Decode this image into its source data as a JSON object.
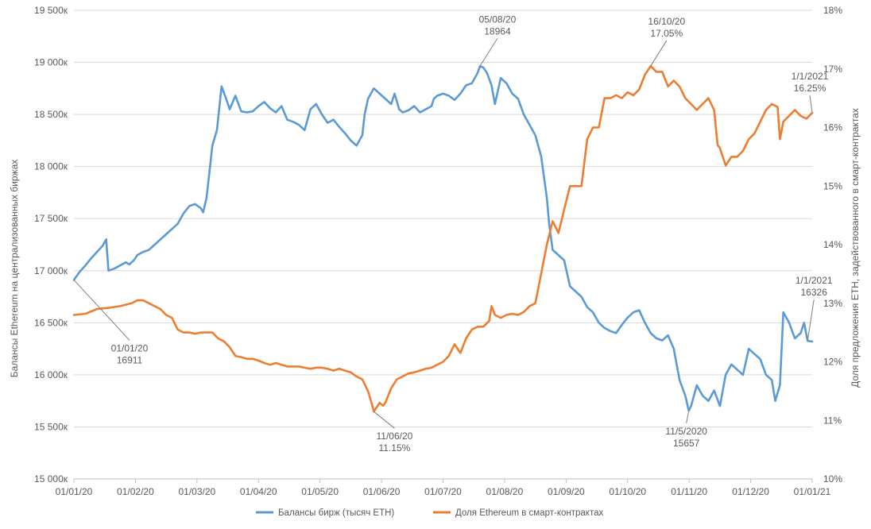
{
  "chart_data": {
    "type": "line",
    "title": "",
    "x_start": "2020-01-01",
    "x_end": "2021-01-01",
    "x_ticks": [
      "01/01/20",
      "01/02/20",
      "01/03/20",
      "01/04/20",
      "01/05/20",
      "01/06/20",
      "01/07/20",
      "01/08/20",
      "01/09/20",
      "01/10/20",
      "01/11/20",
      "01/12/20",
      "01/01/21"
    ],
    "y_left": {
      "label": "Балансы Ethereum на централизованных биржах",
      "range": [
        15000,
        19500
      ],
      "ticks": [
        "15 000к",
        "15 500к",
        "16 000к",
        "16 500к",
        "17 000к",
        "17 500к",
        "18 000к",
        "18 500к",
        "19 000к",
        "19 500к"
      ]
    },
    "y_right": {
      "label": "Доля предложения ETH, задействованного в смарт-контрактах",
      "range": [
        10,
        18
      ],
      "ticks": [
        "10%",
        "11%",
        "12%",
        "13%",
        "14%",
        "15%",
        "16%",
        "17%",
        "18%"
      ]
    },
    "colors": {
      "balances": "#5b9bd5",
      "share": "#ed7d31",
      "grid": "#d9d9d9",
      "text": "#595959"
    },
    "series": [
      {
        "name": "Балансы бирж (тысяч ETH)",
        "axis": "left",
        "color": "#5b9bd5",
        "points": [
          [
            0,
            16911
          ],
          [
            5,
            16990
          ],
          [
            10,
            17050
          ],
          [
            15,
            17120
          ],
          [
            20,
            17180
          ],
          [
            25,
            17240
          ],
          [
            28,
            17300
          ],
          [
            30,
            17000
          ],
          [
            35,
            17020
          ],
          [
            40,
            17050
          ],
          [
            45,
            17080
          ],
          [
            48,
            17060
          ],
          [
            52,
            17100
          ],
          [
            55,
            17150
          ],
          [
            60,
            17180
          ],
          [
            65,
            17200
          ],
          [
            70,
            17250
          ],
          [
            75,
            17300
          ],
          [
            80,
            17350
          ],
          [
            85,
            17400
          ],
          [
            90,
            17450
          ],
          [
            95,
            17550
          ],
          [
            100,
            17620
          ],
          [
            105,
            17640
          ],
          [
            110,
            17600
          ],
          [
            112,
            17560
          ],
          [
            115,
            17700
          ],
          [
            118,
            18000
          ],
          [
            120,
            18200
          ],
          [
            124,
            18350
          ],
          [
            128,
            18770
          ],
          [
            132,
            18650
          ],
          [
            135,
            18550
          ],
          [
            140,
            18680
          ],
          [
            145,
            18530
          ],
          [
            150,
            18520
          ],
          [
            155,
            18530
          ],
          [
            160,
            18580
          ],
          [
            165,
            18620
          ],
          [
            170,
            18560
          ],
          [
            175,
            18520
          ],
          [
            180,
            18580
          ],
          [
            185,
            18450
          ],
          [
            190,
            18430
          ],
          [
            195,
            18400
          ],
          [
            200,
            18350
          ],
          [
            205,
            18550
          ],
          [
            210,
            18600
          ],
          [
            215,
            18500
          ],
          [
            220,
            18420
          ],
          [
            225,
            18450
          ],
          [
            230,
            18380
          ],
          [
            235,
            18320
          ],
          [
            240,
            18250
          ],
          [
            245,
            18200
          ],
          [
            250,
            18300
          ],
          [
            252,
            18500
          ],
          [
            255,
            18650
          ],
          [
            260,
            18750
          ],
          [
            265,
            18700
          ],
          [
            270,
            18650
          ],
          [
            275,
            18600
          ],
          [
            278,
            18700
          ],
          [
            282,
            18550
          ],
          [
            285,
            18520
          ],
          [
            290,
            18540
          ],
          [
            295,
            18580
          ],
          [
            300,
            18520
          ],
          [
            305,
            18550
          ],
          [
            310,
            18580
          ],
          [
            312,
            18650
          ],
          [
            315,
            18680
          ],
          [
            320,
            18700
          ],
          [
            325,
            18680
          ],
          [
            330,
            18640
          ],
          [
            335,
            18700
          ],
          [
            340,
            18780
          ],
          [
            345,
            18800
          ],
          [
            350,
            18900
          ],
          [
            352,
            18964
          ],
          [
            355,
            18950
          ],
          [
            358,
            18900
          ],
          [
            362,
            18780
          ],
          [
            365,
            18600
          ],
          [
            370,
            18850
          ],
          [
            375,
            18800
          ],
          [
            380,
            18700
          ],
          [
            385,
            18650
          ],
          [
            390,
            18500
          ],
          [
            395,
            18400
          ],
          [
            400,
            18300
          ],
          [
            405,
            18100
          ],
          [
            410,
            17700
          ],
          [
            412,
            17450
          ],
          [
            415,
            17200
          ],
          [
            420,
            17150
          ],
          [
            425,
            17100
          ],
          [
            430,
            16850
          ],
          [
            435,
            16800
          ],
          [
            440,
            16750
          ],
          [
            445,
            16650
          ],
          [
            450,
            16600
          ],
          [
            455,
            16500
          ],
          [
            460,
            16450
          ],
          [
            465,
            16420
          ],
          [
            470,
            16400
          ],
          [
            475,
            16480
          ],
          [
            480,
            16550
          ],
          [
            485,
            16600
          ],
          [
            490,
            16620
          ],
          [
            495,
            16500
          ],
          [
            500,
            16400
          ],
          [
            505,
            16350
          ],
          [
            510,
            16330
          ],
          [
            515,
            16380
          ],
          [
            520,
            16250
          ],
          [
            525,
            15950
          ],
          [
            530,
            15800
          ],
          [
            533,
            15657
          ],
          [
            535,
            15700
          ],
          [
            540,
            15900
          ],
          [
            545,
            15800
          ],
          [
            550,
            15750
          ],
          [
            555,
            15850
          ],
          [
            560,
            15700
          ],
          [
            565,
            16000
          ],
          [
            570,
            16100
          ],
          [
            575,
            16050
          ],
          [
            580,
            16000
          ],
          [
            585,
            16250
          ],
          [
            590,
            16200
          ],
          [
            595,
            16150
          ],
          [
            600,
            16000
          ],
          [
            605,
            15950
          ],
          [
            608,
            15750
          ],
          [
            612,
            15900
          ],
          [
            615,
            16600
          ],
          [
            620,
            16500
          ],
          [
            625,
            16350
          ],
          [
            630,
            16400
          ],
          [
            633,
            16500
          ],
          [
            636,
            16326
          ],
          [
            640,
            16320
          ]
        ]
      },
      {
        "name": "Доля Ethereum в смарт-контрактах",
        "axis": "right",
        "color": "#ed7d31",
        "points": [
          [
            0,
            12.8
          ],
          [
            10,
            12.82
          ],
          [
            20,
            12.9
          ],
          [
            30,
            12.92
          ],
          [
            40,
            12.95
          ],
          [
            50,
            13
          ],
          [
            55,
            13.05
          ],
          [
            60,
            13.05
          ],
          [
            65,
            13
          ],
          [
            70,
            12.95
          ],
          [
            75,
            12.9
          ],
          [
            80,
            12.8
          ],
          [
            85,
            12.75
          ],
          [
            90,
            12.55
          ],
          [
            95,
            12.5
          ],
          [
            100,
            12.5
          ],
          [
            105,
            12.48
          ],
          [
            110,
            12.5
          ],
          [
            115,
            12.5
          ],
          [
            120,
            12.5
          ],
          [
            125,
            12.4
          ],
          [
            130,
            12.35
          ],
          [
            135,
            12.25
          ],
          [
            140,
            12.1
          ],
          [
            145,
            12.08
          ],
          [
            150,
            12.05
          ],
          [
            155,
            12.05
          ],
          [
            160,
            12.02
          ],
          [
            165,
            11.98
          ],
          [
            170,
            11.95
          ],
          [
            175,
            11.98
          ],
          [
            180,
            11.95
          ],
          [
            185,
            11.92
          ],
          [
            190,
            11.92
          ],
          [
            195,
            11.92
          ],
          [
            200,
            11.9
          ],
          [
            205,
            11.88
          ],
          [
            210,
            11.9
          ],
          [
            215,
            11.9
          ],
          [
            220,
            11.88
          ],
          [
            225,
            11.85
          ],
          [
            230,
            11.88
          ],
          [
            235,
            11.85
          ],
          [
            240,
            11.82
          ],
          [
            245,
            11.75
          ],
          [
            250,
            11.7
          ],
          [
            255,
            11.5
          ],
          [
            258,
            11.3
          ],
          [
            260,
            11.15
          ],
          [
            265,
            11.3
          ],
          [
            268,
            11.25
          ],
          [
            270,
            11.3
          ],
          [
            275,
            11.55
          ],
          [
            280,
            11.7
          ],
          [
            285,
            11.75
          ],
          [
            290,
            11.8
          ],
          [
            295,
            11.82
          ],
          [
            300,
            11.85
          ],
          [
            305,
            11.88
          ],
          [
            310,
            11.9
          ],
          [
            315,
            11.95
          ],
          [
            320,
            12
          ],
          [
            325,
            12.1
          ],
          [
            330,
            12.3
          ],
          [
            335,
            12.15
          ],
          [
            340,
            12.4
          ],
          [
            345,
            12.55
          ],
          [
            350,
            12.6
          ],
          [
            355,
            12.6
          ],
          [
            360,
            12.7
          ],
          [
            362,
            12.95
          ],
          [
            365,
            12.8
          ],
          [
            370,
            12.75
          ],
          [
            375,
            12.8
          ],
          [
            380,
            12.82
          ],
          [
            385,
            12.8
          ],
          [
            390,
            12.85
          ],
          [
            395,
            12.95
          ],
          [
            400,
            13
          ],
          [
            405,
            13.5
          ],
          [
            410,
            14
          ],
          [
            415,
            14.4
          ],
          [
            420,
            14.2
          ],
          [
            425,
            14.6
          ],
          [
            430,
            15
          ],
          [
            435,
            15
          ],
          [
            440,
            15
          ],
          [
            445,
            15.8
          ],
          [
            450,
            16
          ],
          [
            455,
            16
          ],
          [
            460,
            16.5
          ],
          [
            465,
            16.5
          ],
          [
            470,
            16.55
          ],
          [
            475,
            16.5
          ],
          [
            480,
            16.6
          ],
          [
            485,
            16.55
          ],
          [
            490,
            16.65
          ],
          [
            495,
            16.9
          ],
          [
            500,
            17.05
          ],
          [
            505,
            16.95
          ],
          [
            510,
            16.95
          ],
          [
            515,
            16.7
          ],
          [
            520,
            16.8
          ],
          [
            525,
            16.7
          ],
          [
            530,
            16.5
          ],
          [
            535,
            16.4
          ],
          [
            540,
            16.3
          ],
          [
            545,
            16.4
          ],
          [
            550,
            16.5
          ],
          [
            555,
            16.3
          ],
          [
            558,
            15.7
          ],
          [
            560,
            15.65
          ],
          [
            565,
            15.35
          ],
          [
            570,
            15.5
          ],
          [
            575,
            15.5
          ],
          [
            580,
            15.6
          ],
          [
            585,
            15.8
          ],
          [
            590,
            15.9
          ],
          [
            595,
            16.1
          ],
          [
            600,
            16.3
          ],
          [
            605,
            16.4
          ],
          [
            610,
            16.35
          ],
          [
            612,
            15.8
          ],
          [
            615,
            16.1
          ],
          [
            620,
            16.2
          ],
          [
            625,
            16.3
          ],
          [
            630,
            16.2
          ],
          [
            635,
            16.15
          ],
          [
            640,
            16.25
          ]
        ]
      }
    ],
    "annotations": [
      {
        "series": 0,
        "at": 0,
        "date": "01/01/20",
        "value": "16911"
      },
      {
        "series": 0,
        "at": 352,
        "date": "05/08/20",
        "value": "18964"
      },
      {
        "series": 0,
        "at": 533,
        "date": "11/5/2020",
        "value": "15657"
      },
      {
        "series": 0,
        "at": 636,
        "date": "1/1/2021",
        "value": "16326"
      },
      {
        "series": 1,
        "at": 260,
        "date": "11/06/20",
        "value": "11.15%"
      },
      {
        "series": 1,
        "at": 500,
        "date": "16/10/20",
        "value": "17.05%"
      },
      {
        "series": 1,
        "at": 636,
        "date": "1/1/2021",
        "value": "16.25%"
      }
    ],
    "legend": {
      "position": "bottom",
      "items": [
        "Балансы бирж (тысяч ETH)",
        "Доля Ethereum в смарт-контрактах"
      ]
    }
  }
}
